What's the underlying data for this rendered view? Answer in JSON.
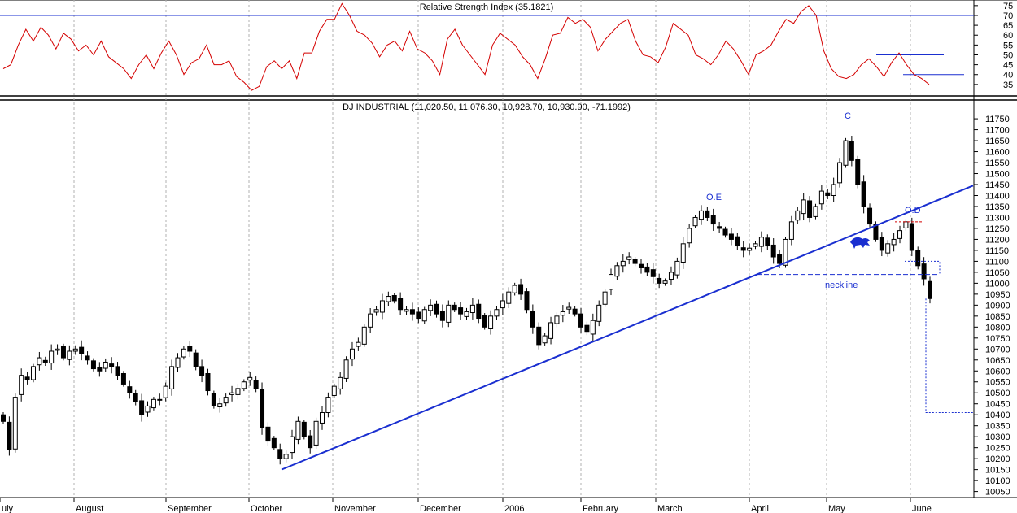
{
  "rsi_panel": {
    "title": "Relative Strength Index (35.1821)",
    "y_ticks": [
      "75",
      "70",
      "65",
      "60",
      "55",
      "50",
      "45",
      "40",
      "35"
    ]
  },
  "price_panel": {
    "title": "DJ INDUSTRIAL (11,020.50, 11,076.30, 10,928.70, 10,930.90, -71.1992)",
    "y_ticks": [
      "11750",
      "11700",
      "11650",
      "11600",
      "11550",
      "11500",
      "11450",
      "11400",
      "11350",
      "11300",
      "11250",
      "11200",
      "11150",
      "11100",
      "11050",
      "11000",
      "10950",
      "10900",
      "10850",
      "10800",
      "10750",
      "10700",
      "10650",
      "10600",
      "10550",
      "10500",
      "10450",
      "10400",
      "10350",
      "10300",
      "10250",
      "10200",
      "10150",
      "10100",
      "10050"
    ]
  },
  "x_axis_labels": [
    "uly",
    "August",
    "September",
    "October",
    "November",
    "December",
    "2006",
    "February",
    "March",
    "April",
    "May",
    "June"
  ],
  "annotations": {
    "c": "C",
    "oe": "O.E",
    "od": "O.D",
    "neckline": "neckline"
  },
  "colors": {
    "rsi_line": "#d40000",
    "trendline": "#1a2fd0",
    "candle_up": "#ffffff",
    "candle_down": "#000000",
    "grid": "#b0b0b0"
  },
  "chart_data": [
    {
      "type": "line",
      "title": "Relative Strength Index (35.1821)",
      "last_value": 35.1821,
      "ylim": [
        30,
        77
      ],
      "overbought": 70,
      "series": [
        {
          "name": "Relative Strength Index",
          "values": [
            43,
            45,
            55,
            63,
            57,
            64,
            60,
            53,
            61,
            58,
            52,
            55,
            50,
            57,
            49,
            46,
            43,
            38,
            45,
            50,
            43,
            51,
            57,
            50,
            40,
            46,
            48,
            55,
            45,
            45,
            47,
            39,
            36,
            32,
            34,
            44,
            47,
            43,
            47,
            38,
            51,
            51,
            62,
            68,
            68,
            76,
            70,
            62,
            60,
            56,
            49,
            55,
            57,
            52,
            62,
            53,
            51,
            47,
            40,
            58,
            63,
            55,
            50,
            45,
            40,
            55,
            61,
            58,
            55,
            49,
            45,
            38,
            48,
            60,
            61,
            69,
            66,
            68,
            64,
            52,
            58,
            62,
            66,
            68,
            57,
            50,
            49,
            46,
            54,
            66,
            63,
            60,
            50,
            48,
            45,
            50,
            57,
            53,
            47,
            40,
            50,
            52,
            55,
            62,
            68,
            66,
            72,
            75,
            70,
            52,
            43,
            39,
            38,
            40,
            45,
            48,
            44,
            39,
            46,
            51,
            45,
            40,
            38,
            35
          ]
        }
      ],
      "horizontal_lines": [
        70,
        50,
        40
      ]
    },
    {
      "type": "candlestick",
      "title": "DJ INDUSTRIAL (11,020.50, 11,076.30, 10,928.70, 10,930.90, -71.1992)",
      "last_bar": {
        "open": 11020.5,
        "high": 11076.3,
        "low": 10928.7,
        "close": 10930.9,
        "change": -71.1992
      },
      "ylim": [
        10030,
        11780
      ],
      "closes": [
        10370,
        10240,
        10480,
        10580,
        10560,
        10620,
        10660,
        10640,
        10690,
        10700,
        10660,
        10690,
        10700,
        10680,
        10650,
        10610,
        10600,
        10640,
        10620,
        10580,
        10540,
        10500,
        10460,
        10400,
        10440,
        10470,
        10470,
        10530,
        10620,
        10660,
        10700,
        10690,
        10620,
        10580,
        10510,
        10440,
        10450,
        10480,
        10500,
        10520,
        10550,
        10570,
        10520,
        10340,
        10280,
        10250,
        10200,
        10220,
        10300,
        10370,
        10300,
        10250,
        10370,
        10410,
        10480,
        10530,
        10570,
        10650,
        10700,
        10730,
        10800,
        10860,
        10880,
        10920,
        10940,
        10920,
        10880,
        10880,
        10860,
        10840,
        10880,
        10900,
        10860,
        10830,
        10900,
        10880,
        10860,
        10870,
        10900,
        10840,
        10800,
        10850,
        10880,
        10920,
        10960,
        10990,
        10950,
        10880,
        10800,
        10720,
        10760,
        10820,
        10850,
        10870,
        10890,
        10860,
        10800,
        10780,
        10830,
        10900,
        10960,
        11040,
        11080,
        11100,
        11120,
        11090,
        11070,
        11050,
        11030,
        11000,
        11010,
        11050,
        11100,
        11180,
        11250,
        11300,
        11330,
        11300,
        11270,
        11250,
        11220,
        11200,
        11170,
        11150,
        11160,
        11180,
        11210,
        11170,
        11120,
        11090,
        11200,
        11280,
        11330,
        11380,
        11300,
        11350,
        11420,
        11400,
        11450,
        11550,
        11650,
        11560,
        11450,
        11350,
        11270,
        11200,
        11150,
        11180,
        11200,
        11240,
        11280,
        11150,
        11080,
        11020,
        10930
      ],
      "neckline": 11040,
      "projected_target": 10410,
      "trendline": [
        {
          "date": "October",
          "value": 10150
        },
        {
          "date": "May",
          "value": 11250
        }
      ],
      "labels": {
        "C": 11750,
        "O.E": 11380,
        "O.D": 11320
      }
    }
  ]
}
